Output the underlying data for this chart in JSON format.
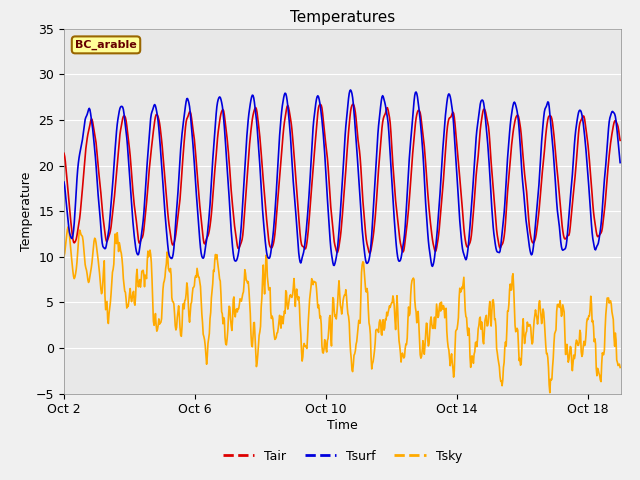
{
  "title": "Temperatures",
  "xlabel": "Time",
  "ylabel": "Temperature",
  "annotation": "BC_arable",
  "ylim": [
    -5,
    35
  ],
  "yticks": [
    -5,
    0,
    5,
    10,
    15,
    20,
    25,
    30,
    35
  ],
  "xtick_labels": [
    "Oct 2",
    "Oct 6",
    "Oct 10",
    "Oct 14",
    "Oct 18"
  ],
  "xtick_pos": [
    0,
    96,
    192,
    288,
    384
  ],
  "xlim": [
    0,
    408
  ],
  "legend": [
    {
      "label": "Tair",
      "color": "#dd0000",
      "lw": 1.2
    },
    {
      "label": "Tsurf",
      "color": "#0000dd",
      "lw": 1.2
    },
    {
      "label": "Tsky",
      "color": "#ffaa00",
      "lw": 1.2
    }
  ],
  "fig_bg": "#f0f0f0",
  "plot_bg": "#e8e8e8",
  "grid_color": "#ffffff",
  "annotation_bg": "#ffff99",
  "annotation_border": "#996600",
  "annotation_text_color": "#660000",
  "title_fontsize": 11,
  "label_fontsize": 9,
  "tick_fontsize": 9
}
